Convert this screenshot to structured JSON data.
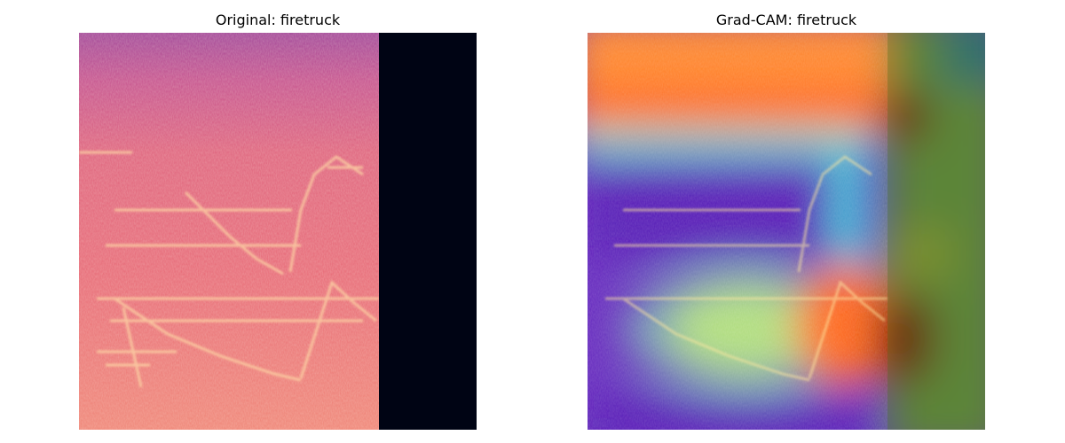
{
  "panels": [
    {
      "title": "Original: firetruck",
      "image": "mel-spectrogram (magma colormap)"
    },
    {
      "title": "Grad-CAM: firetruck",
      "image": "mel-spectrogram with Grad-CAM heatmap overlay (jet colormap)"
    }
  ],
  "colors": {
    "spectrogram_base": "#e8687a",
    "spectrogram_top": "#b0559a",
    "spectrogram_bright": "#fcd8a0",
    "padding": "#000414",
    "cam_hot": "#ff5a1e",
    "cam_dark_red": "#6e0000",
    "cam_cool": "#6a2ec0",
    "cam_cyan": "#5ee6d0",
    "cam_green": "#6a8a3a",
    "cam_teal": "#1a6e8a"
  }
}
